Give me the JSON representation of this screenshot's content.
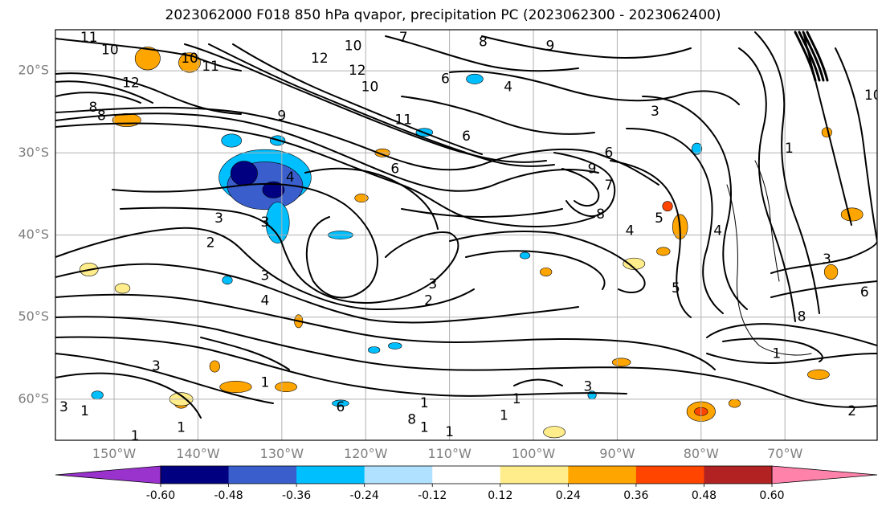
{
  "title": "2023062000 F018 850 hPa qvapor, precipitation PC (2023062300 - 2023062400)",
  "map": {
    "lon_range": [
      -157,
      -59
    ],
    "lat_range": [
      -65,
      -15
    ],
    "lat_ticks": [
      {
        "value": -20,
        "label": "20°S"
      },
      {
        "value": -30,
        "label": "30°S"
      },
      {
        "value": -40,
        "label": "40°S"
      },
      {
        "value": -50,
        "label": "50°S"
      },
      {
        "value": -60,
        "label": "60°S"
      }
    ],
    "lon_ticks": [
      {
        "value": -150,
        "label": "150°W"
      },
      {
        "value": -140,
        "label": "140°W"
      },
      {
        "value": -130,
        "label": "130°W"
      },
      {
        "value": -120,
        "label": "120°W"
      },
      {
        "value": -110,
        "label": "110°W"
      },
      {
        "value": -100,
        "label": "100°W"
      },
      {
        "value": -90,
        "label": "90°W"
      },
      {
        "value": -80,
        "label": "80°W"
      },
      {
        "value": -70,
        "label": "70°W"
      }
    ],
    "gridlines": true,
    "contour_color": "#000000",
    "grid_color": "#b0b0b0"
  },
  "colorbar": {
    "levels": [
      "-0.60",
      "-0.48",
      "-0.36",
      "-0.24",
      "-0.12",
      "0.12",
      "0.24",
      "0.36",
      "0.48",
      "0.60"
    ],
    "colors": [
      "#9a32cd",
      "#000080",
      "#3a5fcd",
      "#00bfff",
      "#b0e2ff",
      "#ffffff",
      "#ffec8b",
      "#ffa500",
      "#ff4500",
      "#b22222",
      "#ff82ab"
    ],
    "extend": "both"
  },
  "contour_labels": [
    {
      "text": "11",
      "lon": -153,
      "lat": -16
    },
    {
      "text": "10",
      "lon": -150.5,
      "lat": -17.5
    },
    {
      "text": "10",
      "lon": -141,
      "lat": -18.5
    },
    {
      "text": "11",
      "lon": -138.5,
      "lat": -19.5
    },
    {
      "text": "12",
      "lon": -148,
      "lat": -21.5
    },
    {
      "text": "8",
      "lon": -152.5,
      "lat": -24.5
    },
    {
      "text": "8",
      "lon": -151.5,
      "lat": -25.5
    },
    {
      "text": "9",
      "lon": -130,
      "lat": -25.5
    },
    {
      "text": "12",
      "lon": -125.5,
      "lat": -18.5
    },
    {
      "text": "10",
      "lon": -121.5,
      "lat": -17
    },
    {
      "text": "12",
      "lon": -121,
      "lat": -20
    },
    {
      "text": "10",
      "lon": -119.5,
      "lat": -22
    },
    {
      "text": "11",
      "lon": -115.5,
      "lat": -26
    },
    {
      "text": "7",
      "lon": -115.5,
      "lat": -16
    },
    {
      "text": "8",
      "lon": -106,
      "lat": -16.5
    },
    {
      "text": "9",
      "lon": -98,
      "lat": -17
    },
    {
      "text": "6",
      "lon": -110.5,
      "lat": -21
    },
    {
      "text": "4",
      "lon": -103,
      "lat": -22
    },
    {
      "text": "6",
      "lon": -108,
      "lat": -28
    },
    {
      "text": "6",
      "lon": -116.5,
      "lat": -32
    },
    {
      "text": "4",
      "lon": -129,
      "lat": -33
    },
    {
      "text": "3",
      "lon": -137.5,
      "lat": -38
    },
    {
      "text": "3",
      "lon": -132,
      "lat": -38.5
    },
    {
      "text": "2",
      "lon": -138.5,
      "lat": -41
    },
    {
      "text": "3",
      "lon": -132,
      "lat": -45
    },
    {
      "text": "4",
      "lon": -132,
      "lat": -48
    },
    {
      "text": "3",
      "lon": -112,
      "lat": -46
    },
    {
      "text": "2",
      "lon": -112.5,
      "lat": -48
    },
    {
      "text": "9",
      "lon": -93,
      "lat": -32
    },
    {
      "text": "7",
      "lon": -91,
      "lat": -34
    },
    {
      "text": "8",
      "lon": -92,
      "lat": -37.5
    },
    {
      "text": "6",
      "lon": -91,
      "lat": -30
    },
    {
      "text": "3",
      "lon": -85.5,
      "lat": -25
    },
    {
      "text": "4",
      "lon": -88.5,
      "lat": -39.5
    },
    {
      "text": "5",
      "lon": -85,
      "lat": -38
    },
    {
      "text": "5",
      "lon": -83,
      "lat": -46.5
    },
    {
      "text": "4",
      "lon": -78,
      "lat": -39.5
    },
    {
      "text": "1",
      "lon": -69.5,
      "lat": -29.5
    },
    {
      "text": "10",
      "lon": -59.5,
      "lat": -23
    },
    {
      "text": "3",
      "lon": -65,
      "lat": -43
    },
    {
      "text": "6",
      "lon": -60.5,
      "lat": -47
    },
    {
      "text": "8",
      "lon": -68,
      "lat": -50
    },
    {
      "text": "1",
      "lon": -71,
      "lat": -54.5
    },
    {
      "text": "3",
      "lon": -93.5,
      "lat": -58.5
    },
    {
      "text": "2",
      "lon": -62,
      "lat": -61.5
    },
    {
      "text": "1",
      "lon": -103.5,
      "lat": -62
    },
    {
      "text": "1",
      "lon": -102,
      "lat": -60
    },
    {
      "text": "1",
      "lon": -113,
      "lat": -60.5
    },
    {
      "text": "6",
      "lon": -123,
      "lat": -61
    },
    {
      "text": "8",
      "lon": -114.5,
      "lat": -62.5
    },
    {
      "text": "1",
      "lon": -113,
      "lat": -63.5
    },
    {
      "text": "1",
      "lon": -110,
      "lat": -64
    },
    {
      "text": "1",
      "lon": -142,
      "lat": -63.5
    },
    {
      "text": "1",
      "lon": -147.5,
      "lat": -64.5
    },
    {
      "text": "3",
      "lon": -156,
      "lat": -61
    },
    {
      "text": "1",
      "lon": -153.5,
      "lat": -61.5
    },
    {
      "text": "3",
      "lon": -145,
      "lat": -56
    },
    {
      "text": "1",
      "lon": -132,
      "lat": -58
    }
  ],
  "precip_patches": [
    {
      "lon": -132,
      "lat": -33,
      "rx": 5.5,
      "ry": 3.4,
      "color": "#00bfff"
    },
    {
      "lon": -132,
      "lat": -34,
      "rx": 4.5,
      "ry": 2.9,
      "color": "#3a5fcd"
    },
    {
      "lon": -134.5,
      "lat": -32.5,
      "rx": 1.6,
      "ry": 1.5,
      "color": "#000080"
    },
    {
      "lon": -131,
      "lat": -34.5,
      "rx": 1.3,
      "ry": 1.0,
      "color": "#000080"
    },
    {
      "lon": -130.5,
      "lat": -38.5,
      "rx": 1.4,
      "ry": 2.5,
      "color": "#00bfff"
    },
    {
      "lon": -136,
      "lat": -28.5,
      "rx": 1.2,
      "ry": 0.8,
      "color": "#00bfff"
    },
    {
      "lon": -130.5,
      "lat": -28.5,
      "rx": 0.9,
      "ry": 0.6,
      "color": "#00bfff"
    },
    {
      "lon": -141,
      "lat": -19,
      "rx": 1.3,
      "ry": 1.2,
      "color": "#ffa500"
    },
    {
      "lon": -146,
      "lat": -18.5,
      "rx": 1.5,
      "ry": 1.4,
      "color": "#ffa500"
    },
    {
      "lon": -148.5,
      "lat": -26,
      "rx": 1.7,
      "ry": 0.8,
      "color": "#ffa500"
    },
    {
      "lon": -82.5,
      "lat": -39,
      "rx": 0.9,
      "ry": 1.5,
      "color": "#ffa500"
    },
    {
      "lon": -84,
      "lat": -36.5,
      "rx": 0.6,
      "ry": 0.6,
      "color": "#ff4500"
    },
    {
      "lon": -80,
      "lat": -61.5,
      "rx": 1.7,
      "ry": 1.2,
      "color": "#ffa500"
    },
    {
      "lon": -80,
      "lat": -61.5,
      "rx": 0.8,
      "ry": 0.5,
      "color": "#ff4500"
    },
    {
      "lon": -135.5,
      "lat": -58.5,
      "rx": 1.9,
      "ry": 0.7,
      "color": "#ffa500"
    },
    {
      "lon": -129.5,
      "lat": -58.5,
      "rx": 1.3,
      "ry": 0.6,
      "color": "#ffa500"
    },
    {
      "lon": -66,
      "lat": -57,
      "rx": 1.3,
      "ry": 0.6,
      "color": "#ffa500"
    },
    {
      "lon": -62,
      "lat": -37.5,
      "rx": 1.3,
      "ry": 0.8,
      "color": "#ffa500"
    },
    {
      "lon": -64.5,
      "lat": -44.5,
      "rx": 0.8,
      "ry": 0.9,
      "color": "#ffa500"
    },
    {
      "lon": -65,
      "lat": -27.5,
      "rx": 0.6,
      "ry": 0.6,
      "color": "#ffa500"
    },
    {
      "lon": -89.5,
      "lat": -55.5,
      "rx": 1.1,
      "ry": 0.5,
      "color": "#ffa500"
    },
    {
      "lon": -153,
      "lat": -44,
      "rx": 0.8,
      "ry": 0.6,
      "color": "#ffa500"
    },
    {
      "lon": -120.5,
      "lat": -35.5,
      "rx": 0.8,
      "ry": 0.5,
      "color": "#ffa500"
    },
    {
      "lon": -118,
      "lat": -30,
      "rx": 0.9,
      "ry": 0.5,
      "color": "#ffa500"
    },
    {
      "lon": -142,
      "lat": -60.5,
      "rx": 0.8,
      "ry": 0.6,
      "color": "#ffa500"
    },
    {
      "lon": -138,
      "lat": -56,
      "rx": 0.6,
      "ry": 0.7,
      "color": "#ffa500"
    },
    {
      "lon": -128,
      "lat": -50.5,
      "rx": 0.5,
      "ry": 0.8,
      "color": "#ffa500"
    },
    {
      "lon": -98.5,
      "lat": -44.5,
      "rx": 0.7,
      "ry": 0.5,
      "color": "#ffa500"
    },
    {
      "lon": -84.5,
      "lat": -42,
      "rx": 0.8,
      "ry": 0.5,
      "color": "#ffa500"
    },
    {
      "lon": -76,
      "lat": -60.5,
      "rx": 0.7,
      "ry": 0.5,
      "color": "#ffa500"
    },
    {
      "lon": -149,
      "lat": -46.5,
      "rx": 0.9,
      "ry": 0.6,
      "color": "#ffec8b"
    },
    {
      "lon": -142,
      "lat": -60,
      "rx": 1.4,
      "ry": 0.8,
      "color": "#ffec8b"
    },
    {
      "lon": -153,
      "lat": -44.2,
      "rx": 1.1,
      "ry": 0.8,
      "color": "#ffec8b"
    },
    {
      "lon": -88,
      "lat": -43.5,
      "rx": 1.3,
      "ry": 0.7,
      "color": "#ffec8b"
    },
    {
      "lon": -97.5,
      "lat": -64,
      "rx": 1.3,
      "ry": 0.7,
      "color": "#ffec8b"
    },
    {
      "lon": -152,
      "lat": -59.5,
      "rx": 0.7,
      "ry": 0.5,
      "color": "#00bfff"
    },
    {
      "lon": -136.5,
      "lat": -45.5,
      "rx": 0.6,
      "ry": 0.5,
      "color": "#00bfff"
    },
    {
      "lon": -123,
      "lat": -60.5,
      "rx": 1.0,
      "ry": 0.4,
      "color": "#00bfff"
    },
    {
      "lon": -116.5,
      "lat": -53.5,
      "rx": 0.8,
      "ry": 0.4,
      "color": "#00bfff"
    },
    {
      "lon": -123,
      "lat": -40,
      "rx": 1.5,
      "ry": 0.5,
      "color": "#00bfff"
    },
    {
      "lon": -113,
      "lat": -27.5,
      "rx": 1.0,
      "ry": 0.5,
      "color": "#00bfff"
    },
    {
      "lon": -107,
      "lat": -21,
      "rx": 1.0,
      "ry": 0.6,
      "color": "#00bfff"
    },
    {
      "lon": -80.5,
      "lat": -29.5,
      "rx": 0.6,
      "ry": 0.7,
      "color": "#00bfff"
    },
    {
      "lon": -93,
      "lat": -59.5,
      "rx": 0.5,
      "ry": 0.5,
      "color": "#00bfff"
    },
    {
      "lon": -119,
      "lat": -54,
      "rx": 0.7,
      "ry": 0.4,
      "color": "#00bfff"
    },
    {
      "lon": -101,
      "lat": -42.5,
      "rx": 0.6,
      "ry": 0.4,
      "color": "#00bfff"
    }
  ]
}
